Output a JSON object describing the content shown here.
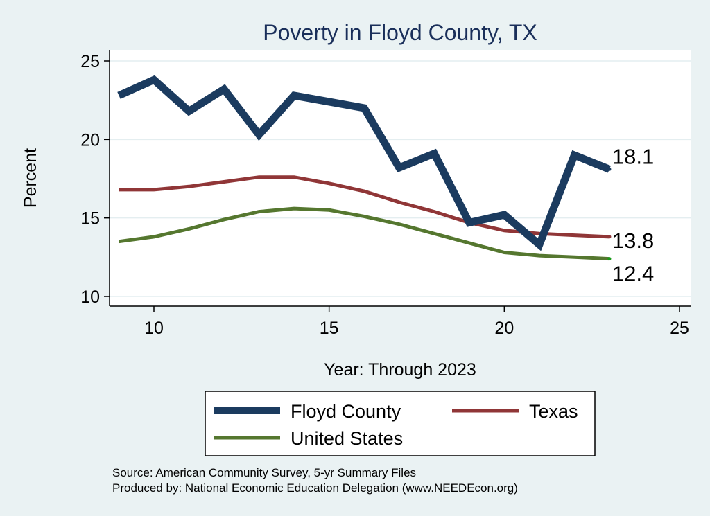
{
  "chart_data": {
    "type": "line",
    "title": "Poverty in Floyd County, TX",
    "xlabel": "Year: Through 2023",
    "ylabel": "Percent",
    "xlim": [
      9,
      25
    ],
    "ylim": [
      10,
      26
    ],
    "xticks": [
      10,
      15,
      20,
      25
    ],
    "yticks": [
      10,
      15,
      20,
      25
    ],
    "grid": true,
    "x": [
      9,
      10,
      11,
      12,
      13,
      14,
      15,
      16,
      17,
      18,
      19,
      20,
      21,
      22,
      23
    ],
    "series": [
      {
        "name": "Floyd County",
        "color": "#1b3b5f",
        "values": [
          22.8,
          23.8,
          21.8,
          23.2,
          20.3,
          22.8,
          22.4,
          22.0,
          18.2,
          19.1,
          14.7,
          15.2,
          13.3,
          19.0,
          18.1
        ],
        "end_label": "18.1"
      },
      {
        "name": "Texas",
        "color": "#903637",
        "values": [
          16.8,
          16.8,
          17.0,
          17.3,
          17.6,
          17.6,
          17.2,
          16.7,
          16.0,
          15.4,
          14.7,
          14.2,
          14.0,
          13.9,
          13.8
        ],
        "end_label": "13.8"
      },
      {
        "name": "United States",
        "color": "#55772f",
        "values": [
          13.5,
          13.8,
          14.3,
          14.9,
          15.4,
          15.6,
          15.5,
          15.1,
          14.6,
          14.0,
          13.4,
          12.8,
          12.6,
          12.5,
          12.4
        ],
        "end_label": "12.4"
      }
    ],
    "legend_position": "bottom"
  },
  "footer": {
    "source": "Source: American Community Survey, 5-yr Summary Files",
    "produced_by": "Produced by: National Economic Education Delegation (www.NEEDEcon.org)"
  }
}
